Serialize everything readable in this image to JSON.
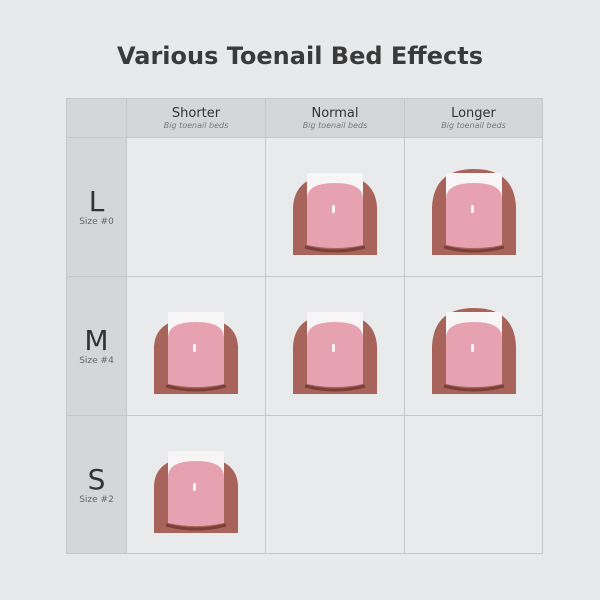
{
  "title": "Various Toenail Bed Effects",
  "columns": [
    {
      "label": "Shorter",
      "sub": "Big toenail beds"
    },
    {
      "label": "Normal",
      "sub": "Big toenail beds"
    },
    {
      "label": "Longer",
      "sub": "Big toenail beds"
    }
  ],
  "rows": [
    {
      "letter": "L",
      "size": "Size #0",
      "cells": [
        false,
        true,
        true
      ]
    },
    {
      "letter": "M",
      "size": "Size #4",
      "cells": [
        true,
        true,
        true
      ]
    },
    {
      "letter": "S",
      "size": "Size #2",
      "cells": [
        true,
        false,
        false
      ]
    }
  ],
  "colors": {
    "skin": "#a8645a",
    "nail": "#e7a2b2",
    "tip": "#f8f5f6",
    "header": "#d5d6d9"
  }
}
